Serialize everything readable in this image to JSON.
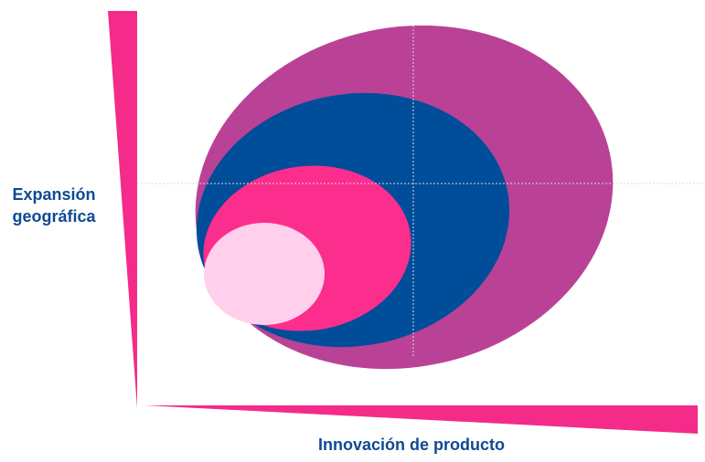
{
  "axes": {
    "y_label_line1": "Expansión",
    "y_label_line2": "geográfica",
    "x_label": "Innovación de producto"
  },
  "colors": {
    "axis_wedge": "#f42b89",
    "outer_ellipse": "#ba4296",
    "middle_ellipse": "#004d99",
    "inner_ellipse": "#fb2e8e",
    "core_ellipse": "#ffcfec",
    "guide_line": "#d7d7e8",
    "label_text": "#0f4a93"
  },
  "diagram": {
    "layers": [
      {
        "name": "outer",
        "color_key": "outer_ellipse"
      },
      {
        "name": "middle",
        "color_key": "middle_ellipse"
      },
      {
        "name": "inner",
        "color_key": "inner_ellipse"
      },
      {
        "name": "core",
        "color_key": "core_ellipse"
      }
    ]
  }
}
